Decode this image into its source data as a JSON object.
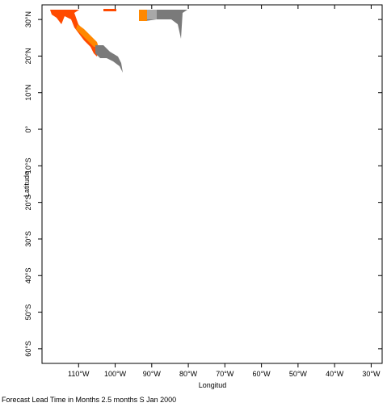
{
  "chart_data": {
    "type": "map",
    "caption": "Forecast Lead Time in Months 2.5 months S Jan 2000",
    "x_label": "Longitud",
    "y_label": "Latitude",
    "xlim": [
      -120,
      -27
    ],
    "ylim": [
      -64,
      34
    ],
    "xticks": [
      {
        "value": -110,
        "label": "110°W"
      },
      {
        "value": -100,
        "label": "100°W"
      },
      {
        "value": -90,
        "label": "90°W"
      },
      {
        "value": -80,
        "label": "80°W"
      },
      {
        "value": -70,
        "label": "70°W"
      },
      {
        "value": -60,
        "label": "60°W"
      },
      {
        "value": -50,
        "label": "50°W"
      },
      {
        "value": -40,
        "label": "40°W"
      },
      {
        "value": -30,
        "label": "30°W"
      }
    ],
    "yticks": [
      {
        "value": 30,
        "label": "30°N"
      },
      {
        "value": 20,
        "label": "20°N"
      },
      {
        "value": 10,
        "label": "10°N"
      },
      {
        "value": 0,
        "label": "0°"
      },
      {
        "value": -10,
        "label": "10°S"
      },
      {
        "value": -20,
        "label": "20°S"
      },
      {
        "value": -30,
        "label": "30°S"
      },
      {
        "value": -40,
        "label": "40°S"
      },
      {
        "value": -50,
        "label": "50°S"
      },
      {
        "value": -60,
        "label": "60°S"
      }
    ]
  }
}
